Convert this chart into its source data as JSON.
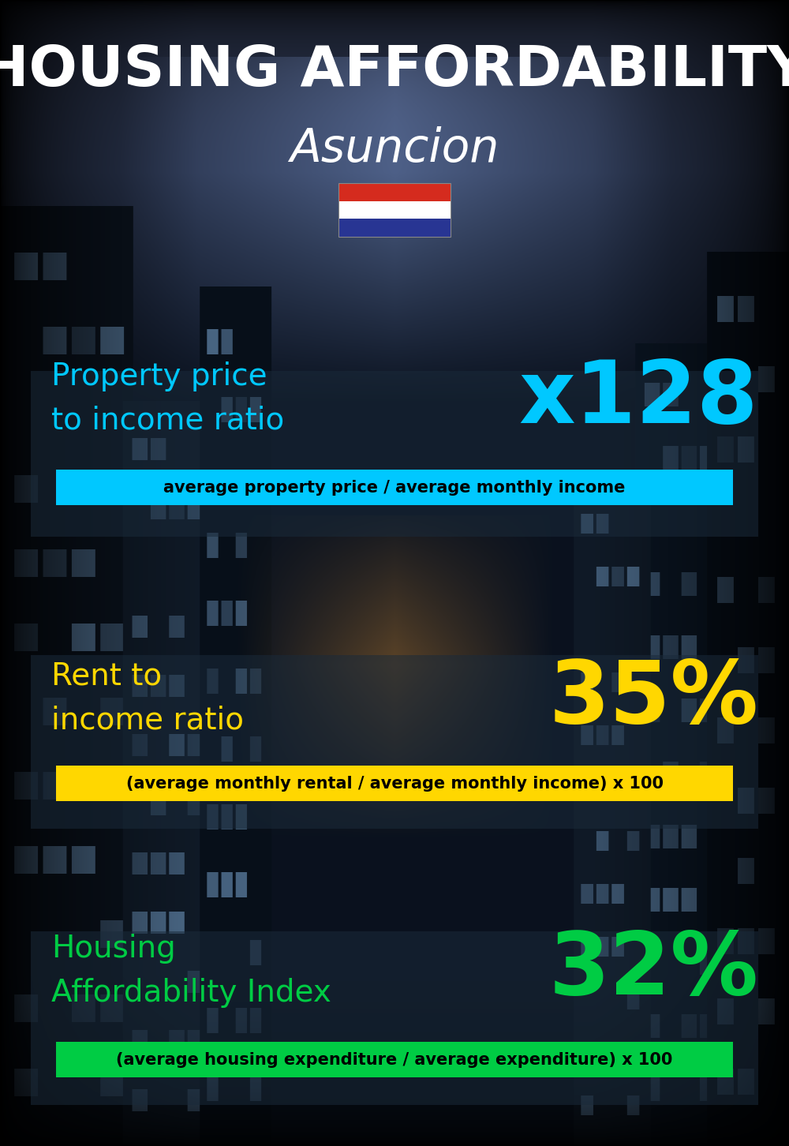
{
  "title_line1": "HOUSING AFFORDABILITY",
  "title_line2": "Asuncion",
  "bg_color": "#0a1422",
  "section1_label": "Property price\nto income ratio",
  "section1_value": "x128",
  "section1_label_color": "#00c8ff",
  "section1_value_color": "#00c8ff",
  "section1_bar_text": "average property price / average monthly income",
  "section1_bar_color": "#00c8ff",
  "section2_label": "Rent to\nincome ratio",
  "section2_value": "35%",
  "section2_label_color": "#ffd700",
  "section2_value_color": "#ffd700",
  "section2_bar_text": "(average monthly rental / average monthly income) x 100",
  "section2_bar_color": "#ffd700",
  "section3_label": "Housing\nAffordability Index",
  "section3_value": "32%",
  "section3_label_color": "#00cc44",
  "section3_value_color": "#00cc44",
  "section3_bar_text": "(average housing expenditure / average expenditure) x 100",
  "section3_bar_color": "#00cc44",
  "panel_color": "#1a2a3a",
  "panel_alpha": 0.55,
  "flag_colors_top": "#d52b1e",
  "flag_colors_mid": "#ffffff",
  "flag_colors_bot": "#283593",
  "title1_fontsize": 52,
  "title2_fontsize": 42,
  "label_fontsize": 28,
  "value_fontsize": 80,
  "bar_fontsize": 15
}
